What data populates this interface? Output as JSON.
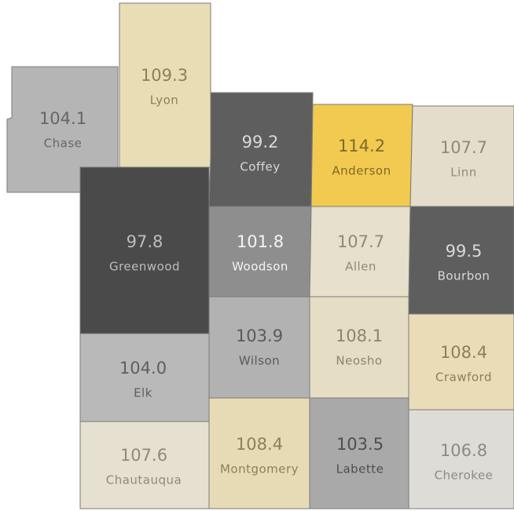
{
  "counties": [
    {
      "name": "Chase",
      "value": 104.1,
      "color": "#b5b5b5",
      "text_color": "#666666"
    },
    {
      "name": "Lyon",
      "value": 109.3,
      "color": "#e8ddb5",
      "text_color": "#8c8058"
    },
    {
      "name": "Coffey",
      "value": 99.2,
      "color": "#5e5e5e",
      "text_color": "#d9d9d9"
    },
    {
      "name": "Anderson",
      "value": 114.2,
      "color": "#f2ca50",
      "text_color": "#7d6a2c"
    },
    {
      "name": "Linn",
      "value": 107.7,
      "color": "#e4ddcb",
      "text_color": "#8f8a78"
    },
    {
      "name": "Greenwood",
      "value": 97.8,
      "color": "#4a4a4a",
      "text_color": "#bdbdbd"
    },
    {
      "name": "Woodson",
      "value": 101.8,
      "color": "#8e8e8e",
      "text_color": "#f4f4f4"
    },
    {
      "name": "Allen",
      "value": 107.7,
      "color": "#e6e0cc",
      "text_color": "#8f8a78"
    },
    {
      "name": "Bourbon",
      "value": 99.5,
      "color": "#5e5e5e",
      "text_color": "#d9d9d9"
    },
    {
      "name": "Elk",
      "value": 104.0,
      "value_label": "104.0",
      "color": "#b9b9b9",
      "text_color": "#5e5e5e"
    },
    {
      "name": "Wilson",
      "value": 103.9,
      "color": "#b2b2b2",
      "text_color": "#5a5a5a"
    },
    {
      "name": "Neosho",
      "value": 108.1,
      "color": "#e5ddc4",
      "text_color": "#8c8470"
    },
    {
      "name": "Crawford",
      "value": 108.4,
      "color": "#e9dcb7",
      "text_color": "#8c7f5a"
    },
    {
      "name": "Chautauqua",
      "value": 107.6,
      "color": "#e5e0d0",
      "text_color": "#8f8a78"
    },
    {
      "name": "Montgomery",
      "value": 108.4,
      "color": "#e7dbb6",
      "text_color": "#8c7f5a"
    },
    {
      "name": "Labette",
      "value": 103.5,
      "color": "#a9a9a9",
      "text_color": "#4e4e4e"
    },
    {
      "name": "Cherokee",
      "value": 106.8,
      "color": "#dddcd7",
      "text_color": "#8a8a86"
    }
  ]
}
